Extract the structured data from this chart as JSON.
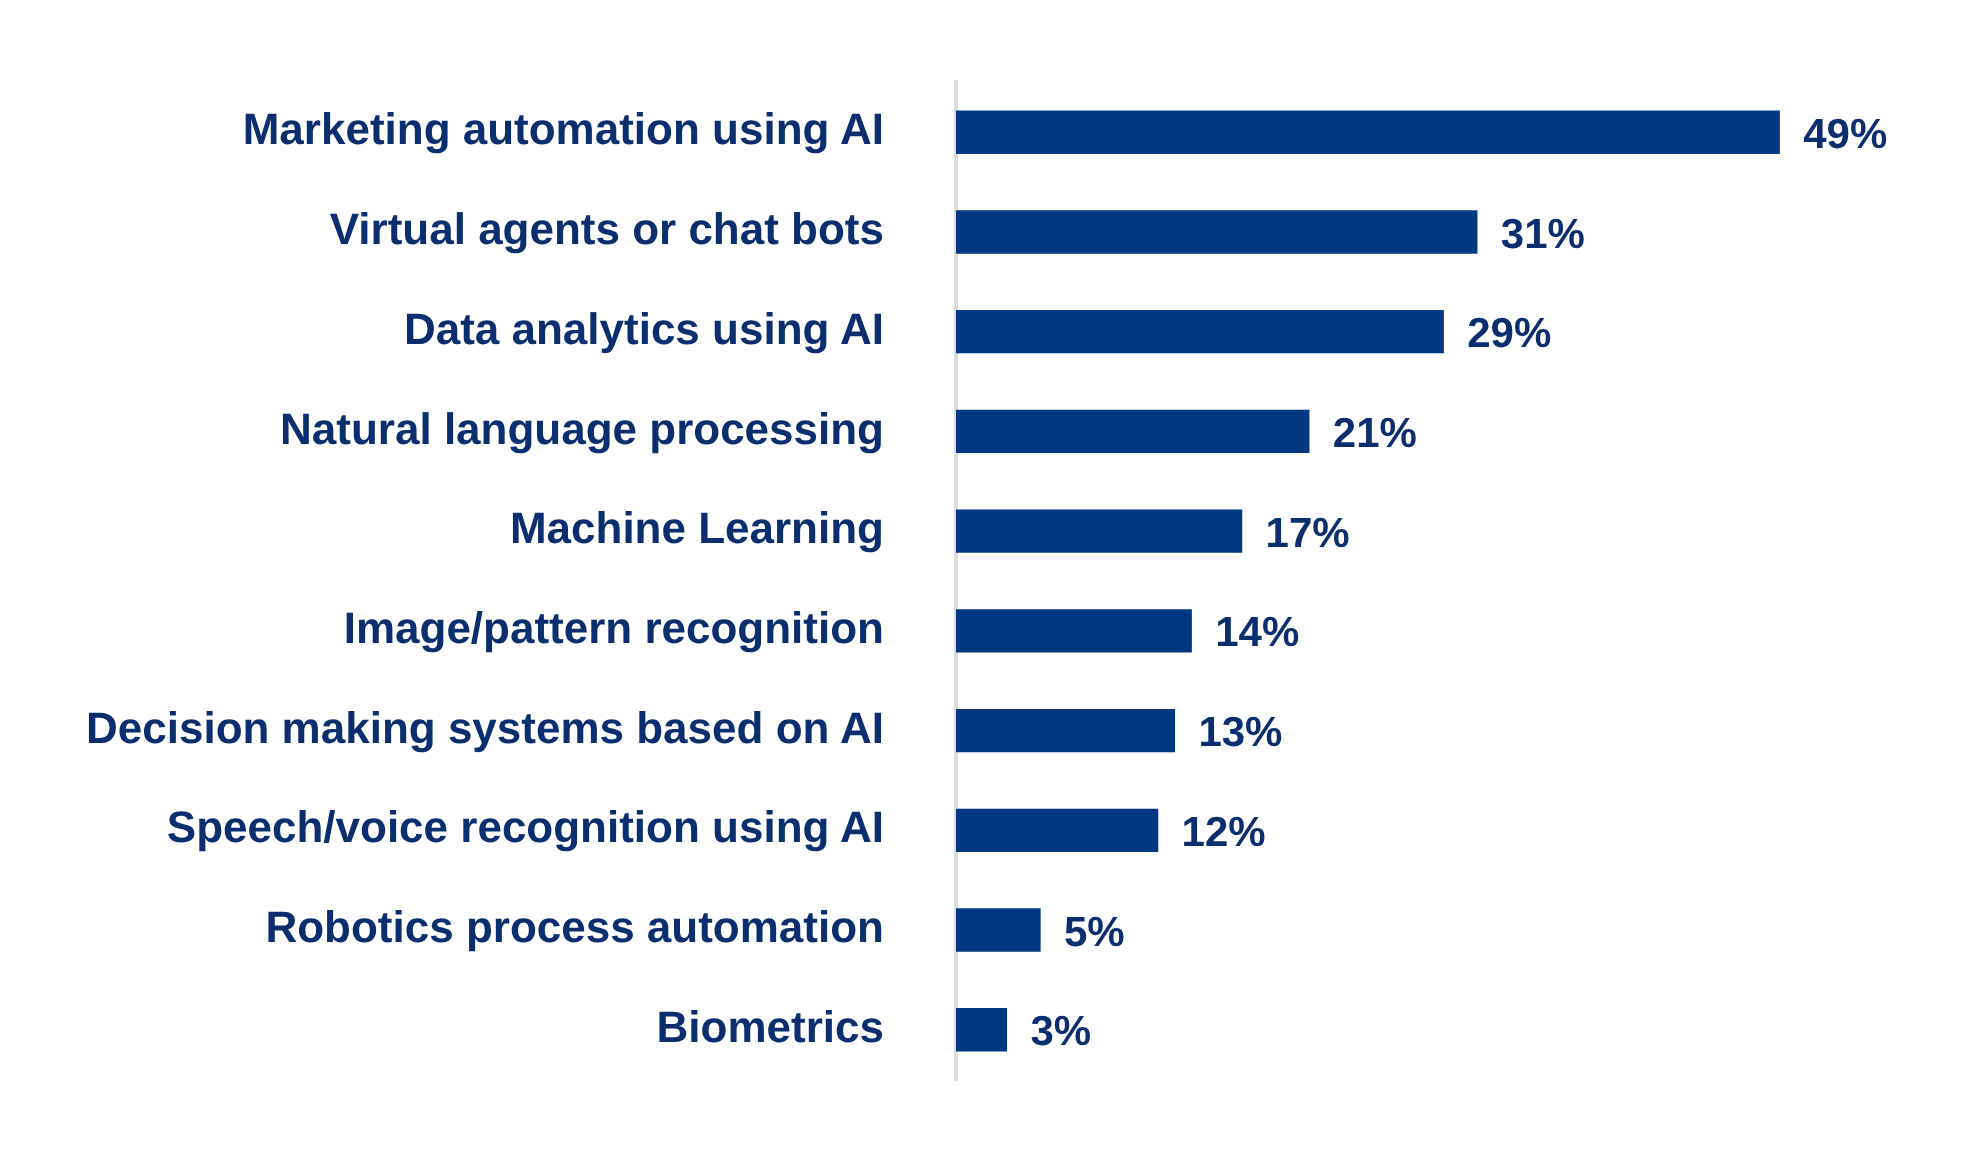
{
  "chart_data": {
    "type": "bar",
    "orientation": "horizontal",
    "color": "#003781",
    "categories": [
      "Marketing automation using AI",
      "Virtual agents or chat bots",
      "Data analytics using AI",
      "Natural language processing",
      "Machine Learning",
      "Image/pattern recognition",
      "Decision making systems based on AI",
      "Speech/voice recognition using AI",
      "Robotics process automation",
      "Biometrics"
    ],
    "values": [
      49,
      31,
      29,
      21,
      17,
      14,
      13,
      12,
      5,
      3
    ],
    "value_labels": [
      "49%",
      "31%",
      "29%",
      "21%",
      "17%",
      "14%",
      "13%",
      "12%",
      "5%",
      "3%"
    ],
    "legend": false
  }
}
